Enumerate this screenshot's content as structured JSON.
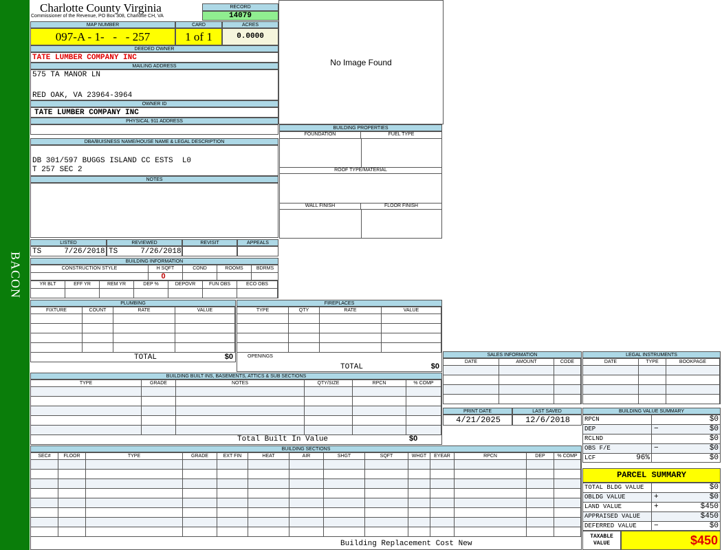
{
  "side_label": "BACON",
  "header": {
    "title": "Charlotte County Virginia",
    "subtitle": "Commissioner of the Revenue, PO Box 308, Charlotte CH, VA"
  },
  "record": {
    "label": "RECORD",
    "value": "14079"
  },
  "image": {
    "text": "No Image Found"
  },
  "map": {
    "label": "MAP NUMBER",
    "value": "097-A - 1-   -   - 257"
  },
  "card": {
    "label": "CARD",
    "value": "1 of 1"
  },
  "acres": {
    "label": "ACRES",
    "value": "0.0000"
  },
  "deeded_owner": {
    "label": "DEEDED OWNER",
    "value": "TATE LUMBER COMPANY INC"
  },
  "mailing": {
    "label": "MAILING ADDRESS",
    "line1": "575 TA MANOR LN",
    "line2": "RED OAK, VA 23964-3964"
  },
  "owner_id": {
    "label": "OWNER ID",
    "value": "TATE LUMBER COMPANY INC"
  },
  "physical": {
    "label": "PHYSICAL 911 ADDRESS",
    "value": ""
  },
  "dba": {
    "label": "DBA/BUISNESS NAME/HOUSE NAME & LEGAL DESCRIPTION",
    "value": "DB 301/597 BUGGS ISLAND CC ESTS  L0\nT 257 SEC 2"
  },
  "notes": {
    "label": "NOTES",
    "value": ""
  },
  "status": {
    "headers": [
      "LISTED",
      "REVIEWED",
      "REVISIT",
      "APPEALS"
    ],
    "listed": "TS     7/26/2018",
    "reviewed": "TS     7/26/2018"
  },
  "building_info": {
    "label": "BUILDING INFORMATION",
    "headers1": [
      "CONSTRUCTION STYLE",
      "H SQFT",
      "COND",
      "ROOMS",
      "BDRMS"
    ],
    "hsqft": "0",
    "headers2": [
      "YR BLT",
      "EFF YR",
      "REM YR",
      "DEP %",
      "DEPOVR",
      "FUN OBS",
      "ECO OBS"
    ]
  },
  "building_props": {
    "label": "BUILDING PROPERTIES",
    "foundation": "FOUNDATION",
    "fuel": "FUEL TYPE",
    "roof": "ROOF TYPE/MATERIAL",
    "wall": "WALL FINISH",
    "floor": "FLOOR FINISH"
  },
  "plumbing": {
    "label": "PLUMBING",
    "headers": [
      "FIXTURE",
      "COUNT",
      "RATE",
      "VALUE"
    ],
    "total_label": "TOTAL",
    "total": "$0"
  },
  "fireplaces": {
    "label": "FIREPLACES",
    "headers": [
      "TYPE",
      "QTY",
      "RATE",
      "VALUE"
    ],
    "openings": "OPENINGS",
    "total_label": "TOTAL",
    "total": "$0"
  },
  "builtins": {
    "label": "BUILDING BUILT INS, BASEMENTS, ATTICS & SUB SECTIONS",
    "headers": [
      "TYPE",
      "GRADE",
      "NOTES",
      "QTY/SIZE",
      "RPCN",
      "% COMP"
    ],
    "total_label": "Total Built In Value",
    "total": "$0"
  },
  "sections": {
    "label": "BUILDING SECTIONS",
    "headers": [
      "SEC#",
      "FLOOR",
      "TYPE",
      "GRADE",
      "EXT FIN",
      "HEAT",
      "AIR",
      "SHGT",
      "SQFT",
      "WHGT",
      "EYEAR",
      "RPCN",
      "DEP",
      "% COMP"
    ],
    "footer": "Building Replacement Cost New"
  },
  "sales": {
    "label": "SALES INFORMATION",
    "headers": [
      "DATE",
      "AMOUNT",
      "CODE"
    ]
  },
  "legal": {
    "label": "LEGAL INSTRUMENTS",
    "headers": [
      "DATE",
      "TYPE",
      "BOOKPAGE"
    ]
  },
  "dates": {
    "print_label": "PRINT DATE",
    "print": "4/21/2025",
    "saved_label": "LAST SAVED",
    "saved": "12/6/2018"
  },
  "bvs": {
    "label": "BUILDING VALUE SUMMARY",
    "rows": [
      {
        "label": "RPCN",
        "sign": "",
        "value": "$0"
      },
      {
        "label": "DEP",
        "sign": "−",
        "value": "$0"
      },
      {
        "label": "RCLND",
        "sign": "",
        "value": "$0"
      },
      {
        "label": "OBS F/E",
        "sign": "−",
        "value": "$0"
      },
      {
        "label": "LCF",
        "pct": "96%",
        "sign": "",
        "value": "$0"
      }
    ]
  },
  "parcel": {
    "label": "PARCEL SUMMARY",
    "rows": [
      {
        "label": "TOTAL BLDG VALUE",
        "sign": "",
        "value": "$0"
      },
      {
        "label": "OBLDG VALUE",
        "sign": "+",
        "value": "$0"
      },
      {
        "label": "LAND VALUE",
        "sign": "+",
        "value": "$450"
      },
      {
        "label": "APPRAISED VALUE",
        "sign": "",
        "value": "$450"
      },
      {
        "label": "DEFERRED VALUE",
        "sign": "−",
        "value": "$0"
      }
    ],
    "taxable_label": "TAXABLE VALUE",
    "taxable": "$450"
  },
  "colors": {
    "green": "#0a7d0a",
    "header_blue": "#add8e6",
    "yellow": "#ffff00",
    "red": "#e00000"
  }
}
